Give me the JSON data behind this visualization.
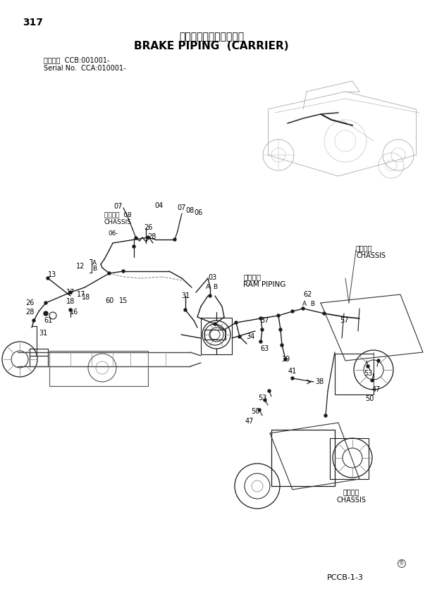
{
  "page_number": "317",
  "title_japanese": "ブレーキ配管（走行体）",
  "title_english": "BRAKE PIPING  (CARRIER)",
  "serial_line1": "適用号機  CCB:001001-",
  "serial_line2": "Serial No.  CCA:010001-",
  "footer_code": "PCCB-1-3",
  "chassis_jp": "シャーシ",
  "chassis_en": "CHASSIS",
  "ram_jp": "ラム配管",
  "ram_en": "RAM PIPING",
  "bg_color": "#ffffff"
}
